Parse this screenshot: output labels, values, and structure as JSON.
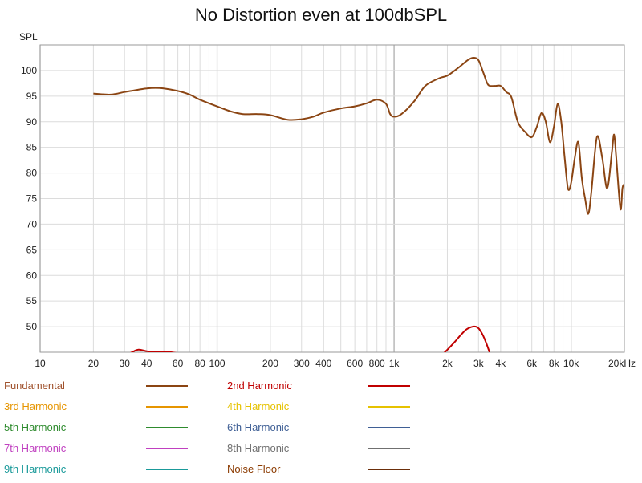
{
  "chart_data": {
    "type": "line",
    "title": "No Distortion even at 100dbSPL",
    "ylabel": "SPL",
    "xlabel": "",
    "x_scale": "log",
    "xlim": [
      10,
      20000
    ],
    "ylim": [
      45,
      105
    ],
    "grid": true,
    "x_ticks": [
      {
        "value": 10,
        "label": "10"
      },
      {
        "value": 20,
        "label": "20"
      },
      {
        "value": 30,
        "label": "30"
      },
      {
        "value": 40,
        "label": "40"
      },
      {
        "value": 60,
        "label": "60"
      },
      {
        "value": 80,
        "label": "80"
      },
      {
        "value": 100,
        "label": "100"
      },
      {
        "value": 200,
        "label": "200"
      },
      {
        "value": 300,
        "label": "300"
      },
      {
        "value": 400,
        "label": "400"
      },
      {
        "value": 600,
        "label": "600"
      },
      {
        "value": 800,
        "label": "800"
      },
      {
        "value": 1000,
        "label": "1k"
      },
      {
        "value": 2000,
        "label": "2k"
      },
      {
        "value": 3000,
        "label": "3k"
      },
      {
        "value": 4000,
        "label": "4k"
      },
      {
        "value": 6000,
        "label": "6k"
      },
      {
        "value": 8000,
        "label": "8k"
      },
      {
        "value": 10000,
        "label": "10k"
      },
      {
        "value": 20000,
        "label": "20kHz"
      }
    ],
    "y_ticks": [
      50,
      55,
      60,
      65,
      70,
      75,
      80,
      85,
      90,
      95,
      100
    ],
    "series": [
      {
        "name": "Fundamental",
        "color": "#8B4513",
        "points": [
          [
            20,
            95.5
          ],
          [
            25,
            95.3
          ],
          [
            30,
            95.8
          ],
          [
            35,
            96.2
          ],
          [
            40,
            96.5
          ],
          [
            45,
            96.6
          ],
          [
            50,
            96.5
          ],
          [
            60,
            96
          ],
          [
            70,
            95.3
          ],
          [
            80,
            94.3
          ],
          [
            100,
            93
          ],
          [
            120,
            92
          ],
          [
            140,
            91.5
          ],
          [
            170,
            91.5
          ],
          [
            200,
            91.3
          ],
          [
            250,
            90.4
          ],
          [
            300,
            90.5
          ],
          [
            350,
            91
          ],
          [
            400,
            91.8
          ],
          [
            500,
            92.6
          ],
          [
            600,
            93
          ],
          [
            700,
            93.6
          ],
          [
            800,
            94.3
          ],
          [
            900,
            93.5
          ],
          [
            950,
            91.5
          ],
          [
            1000,
            91
          ],
          [
            1100,
            91.5
          ],
          [
            1300,
            94
          ],
          [
            1500,
            97
          ],
          [
            1800,
            98.5
          ],
          [
            2000,
            99
          ],
          [
            2300,
            100.5
          ],
          [
            2600,
            102
          ],
          [
            2800,
            102.5
          ],
          [
            3000,
            102
          ],
          [
            3200,
            99.5
          ],
          [
            3400,
            97.2
          ],
          [
            3700,
            97
          ],
          [
            4000,
            97
          ],
          [
            4300,
            95.8
          ],
          [
            4600,
            94.8
          ],
          [
            5000,
            90
          ],
          [
            5500,
            88
          ],
          [
            6000,
            87
          ],
          [
            6400,
            89
          ],
          [
            6800,
            91.7
          ],
          [
            7200,
            90
          ],
          [
            7600,
            86
          ],
          [
            8000,
            89
          ],
          [
            8400,
            93.5
          ],
          [
            8800,
            90
          ],
          [
            9200,
            83
          ],
          [
            9600,
            77
          ],
          [
            10000,
            78
          ],
          [
            10500,
            83
          ],
          [
            11000,
            86
          ],
          [
            11500,
            79
          ],
          [
            12000,
            75
          ],
          [
            12500,
            72
          ],
          [
            13000,
            76
          ],
          [
            14000,
            87
          ],
          [
            15000,
            83
          ],
          [
            16000,
            77
          ],
          [
            17000,
            84
          ],
          [
            17500,
            87.5
          ],
          [
            18000,
            83
          ],
          [
            19000,
            73
          ],
          [
            19500,
            77
          ],
          [
            20000,
            77.5
          ],
          [
            20500,
            75
          ],
          [
            21000,
            68
          ],
          [
            21500,
            55
          ],
          [
            22000,
            45
          ]
        ]
      },
      {
        "name": "2nd Harmonic",
        "color": "#C00000",
        "segments": [
          [
            [
              29,
              44
            ],
            [
              33,
              45
            ],
            [
              36,
              45.5
            ],
            [
              40,
              45.2
            ],
            [
              45,
              45
            ],
            [
              50,
              45.1
            ],
            [
              55,
              45
            ],
            [
              60,
              44.8
            ],
            [
              65,
              44.5
            ]
          ],
          [
            [
              1800,
              44
            ],
            [
              2000,
              45.5
            ],
            [
              2200,
              47
            ],
            [
              2400,
              48.5
            ],
            [
              2600,
              49.6
            ],
            [
              2900,
              50
            ],
            [
              3100,
              49
            ],
            [
              3300,
              47
            ],
            [
              3500,
              44.5
            ]
          ]
        ]
      }
    ],
    "legend": [
      {
        "label": "Fundamental",
        "color": "#A0522D",
        "line": "#8B4513"
      },
      {
        "label": "2nd Harmonic",
        "color": "#C00000",
        "line": "#C00000"
      },
      {
        "label": "3rd Harmonic",
        "color": "#E69500",
        "line": "#E69500"
      },
      {
        "label": "4th Harmonic",
        "color": "#E6C200",
        "line": "#E6C200"
      },
      {
        "label": "5th Harmonic",
        "color": "#2E8B2E",
        "line": "#2E8B2E"
      },
      {
        "label": "6th Harmonic",
        "color": "#3F5F95",
        "line": "#3F5F95"
      },
      {
        "label": "7th Harmonic",
        "color": "#C040C0",
        "line": "#C040C0"
      },
      {
        "label": "8th Harmonic",
        "color": "#707070",
        "line": "#707070"
      },
      {
        "label": "9th Harmonic",
        "color": "#1A9A9A",
        "line": "#1A9A9A"
      },
      {
        "label": "Noise Floor",
        "color": "#8B3A00",
        "line": "#6B2E0A"
      }
    ],
    "legend_placement": "bottom"
  }
}
